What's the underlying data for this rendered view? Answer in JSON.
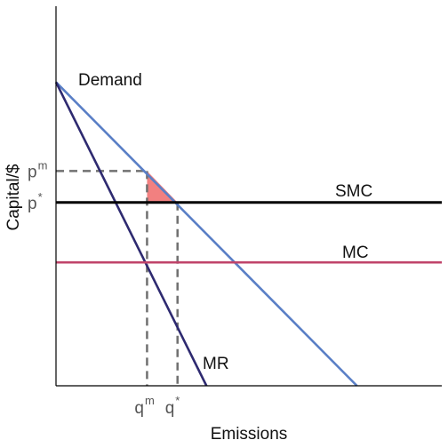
{
  "chart_data": {
    "type": "line",
    "xlabel": "Emissions",
    "ylabel": "Capital/$",
    "xlim": [
      0,
      100
    ],
    "ylim": [
      0,
      100
    ],
    "grid": false,
    "legend": "none",
    "series": [
      {
        "name": "Demand",
        "color": "#5a7fc6",
        "points": [
          [
            0,
            80
          ],
          [
            78,
            0
          ]
        ]
      },
      {
        "name": "MR",
        "color": "#2e2a70",
        "points": [
          [
            0,
            80
          ],
          [
            39,
            0
          ]
        ]
      },
      {
        "name": "SMC",
        "color": "#000000",
        "points": [
          [
            0,
            48.3
          ],
          [
            100,
            48.3
          ]
        ]
      },
      {
        "name": "MC",
        "color": "#c0446a",
        "points": [
          [
            0,
            32.5
          ],
          [
            100,
            32.5
          ]
        ]
      }
    ],
    "reference_lines": [
      {
        "name": "p-m-guide",
        "points": [
          [
            0,
            56.6
          ],
          [
            23.6,
            56.6
          ]
        ]
      },
      {
        "name": "q-m-guide",
        "points": [
          [
            23.6,
            56.6
          ],
          [
            23.6,
            0
          ]
        ]
      },
      {
        "name": "q-star-guide",
        "points": [
          [
            31.5,
            48.3
          ],
          [
            31.5,
            0
          ]
        ]
      }
    ],
    "deadweight_triangle": {
      "color": "#f28080",
      "points": [
        [
          23.6,
          56.6
        ],
        [
          23.6,
          48.3
        ],
        [
          31.5,
          48.3
        ]
      ]
    },
    "y_ticks": [
      {
        "name": "p-m-tick",
        "base": "p",
        "sup": "m",
        "value": 56.6
      },
      {
        "name": "p-star-tick",
        "base": "p",
        "sup": "*",
        "value": 48.3
      }
    ],
    "x_ticks": [
      {
        "name": "q-m-tick",
        "base": "q",
        "sup": "m",
        "value": 23.6
      },
      {
        "name": "q-star-tick",
        "base": "q",
        "sup": "*",
        "value": 31.5
      }
    ]
  }
}
